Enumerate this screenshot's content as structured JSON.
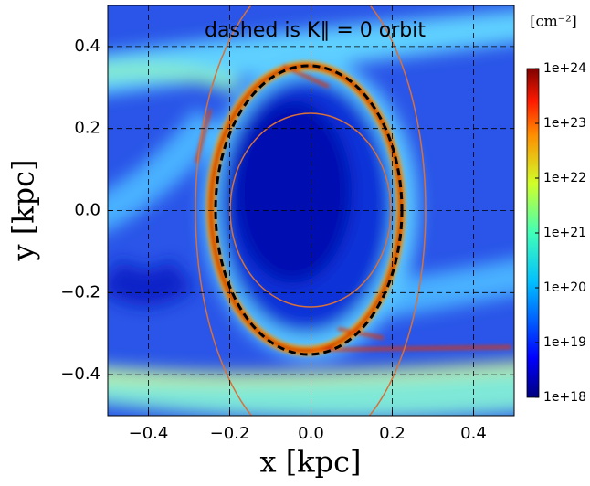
{
  "chart_data": {
    "type": "heatmap",
    "annotation": "dashed is K∥ = 0 orbit",
    "xlabel": "x [kpc]",
    "ylabel": "y [kpc]",
    "colorbar_label": "[cm⁻²]",
    "xlim": [
      -0.5,
      0.5
    ],
    "ylim": [
      -0.5,
      0.5
    ],
    "xticks": [
      {
        "value": -0.4,
        "label": "−0.4"
      },
      {
        "value": -0.2,
        "label": "−0.2"
      },
      {
        "value": 0,
        "label": "0.0"
      },
      0.2,
      0.4
    ],
    "yticks": [
      {
        "value": -0.4,
        "label": "−0.4"
      },
      {
        "value": -0.2,
        "label": "−0.2"
      },
      {
        "value": 0,
        "label": "0.0"
      },
      0.2,
      0.4
    ],
    "grid": true,
    "colormap": "jet",
    "colorbar_log": true,
    "colorbar_lim": [
      1e+18,
      1e+24
    ],
    "colorbar_ticks": [
      {
        "value": 1e+18,
        "label": "1e+18"
      },
      {
        "value": 1e+19,
        "label": "1e+19"
      },
      {
        "value": 1e+20,
        "label": "1e+20"
      },
      {
        "value": 1e+21,
        "label": "1e+21"
      },
      {
        "value": 1e+22,
        "label": "1e+22"
      },
      {
        "value": 1e+23,
        "label": "1e+23"
      },
      {
        "value": 1e+24,
        "label": "1e+24"
      }
    ]
  }
}
